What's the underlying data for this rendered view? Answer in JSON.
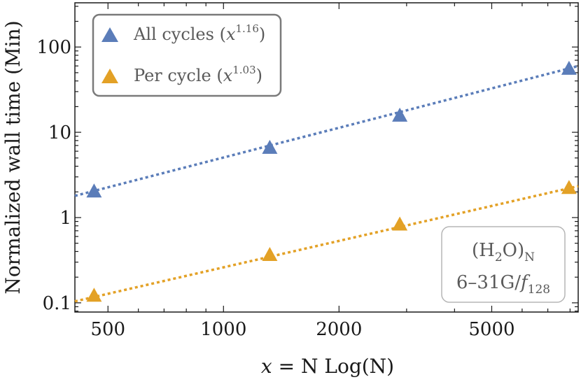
{
  "chart_data": {
    "type": "scatter",
    "scale": {
      "x": "log",
      "y": "log"
    },
    "xlim": [
      410,
      8400
    ],
    "ylim": [
      0.078,
      330
    ],
    "x_ticks": [
      500,
      1000,
      2000,
      5000
    ],
    "x_tick_labels": [
      "500",
      "1000",
      "2000",
      "5000"
    ],
    "y_ticks": [
      0.1,
      1,
      10,
      100
    ],
    "y_tick_labels": [
      "0.1",
      "1",
      "10",
      "100"
    ],
    "xlabel": {
      "var": "x",
      "rest": " = N Log(N)"
    },
    "ylabel": "Normalized wall time (Min)",
    "legend_position": "top-left",
    "series": [
      {
        "name": {
          "prefix": "All cycles (",
          "var": "x",
          "exponent": "1.16",
          "suffix": ")"
        },
        "color": "#5b7db9",
        "marker": "triangle",
        "x": [
          460,
          1320,
          2880,
          7950
        ],
        "y": [
          2.0,
          6.5,
          15.5,
          55.0
        ],
        "fit": {
          "type": "power",
          "exponent": 1.16,
          "coef": 0.001675,
          "line_style": "dotted"
        }
      },
      {
        "name": {
          "prefix": "Per cycle (",
          "var": "x",
          "exponent": "1.03",
          "suffix": ")"
        },
        "color": "#e3a126",
        "marker": "triangle",
        "x": [
          460,
          1320,
          2880,
          7950
        ],
        "y": [
          0.12,
          0.36,
          0.82,
          2.2
        ],
        "fit": {
          "type": "power",
          "exponent": 1.03,
          "coef": 0.000212,
          "line_style": "dotted"
        }
      }
    ],
    "annotation": {
      "line1": {
        "a": "(H",
        "sub": "2",
        "b": "O)",
        "sub2": "N"
      },
      "line2": {
        "a": "6–31G/",
        "var": "f",
        "sub": "128"
      }
    }
  }
}
